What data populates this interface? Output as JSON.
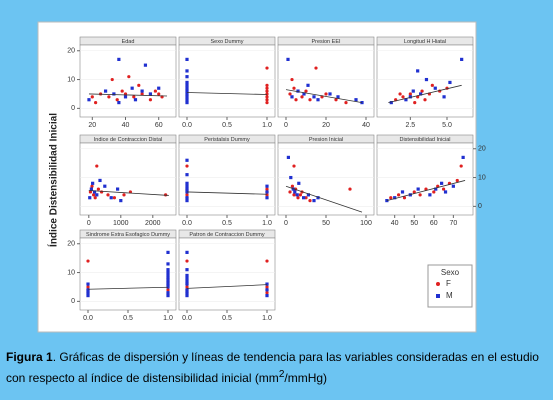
{
  "figure": {
    "y_label": "Índice Distensibilidad Inicial",
    "legend_title": "Sexo"
  },
  "caption": {
    "label": "Figura 1",
    "text": ". Gráficas de dispersión y líneas de tendencia para las variables consideradas en el estudio con respecto al índice de distensibilidad inicial (mm",
    "superscript": "2",
    "text_end": "/mmHg)"
  },
  "chart_data": [
    {
      "type": "scatter",
      "title": "Edad",
      "yaxis": "left",
      "xlim": [
        15,
        68
      ],
      "xticks": [
        20,
        40,
        60
      ],
      "ylim": [
        -3,
        22
      ],
      "yticks": [
        0,
        10,
        20
      ],
      "series": [
        {
          "name": "F",
          "color": "#e02020",
          "x": [
            20,
            25,
            30,
            32,
            35,
            38,
            40,
            42,
            45,
            48,
            50,
            55,
            58,
            60,
            62,
            22
          ],
          "values": [
            4,
            5,
            4,
            10,
            3,
            6,
            5,
            11,
            4,
            8,
            5,
            3,
            6,
            5,
            4,
            2
          ]
        },
        {
          "name": "M",
          "color": "#2030d0",
          "x": [
            18,
            28,
            33,
            36,
            40,
            44,
            46,
            50,
            52,
            55,
            60,
            36
          ],
          "values": [
            3,
            6,
            5,
            17,
            4,
            7,
            3,
            6,
            15,
            5,
            7,
            2
          ]
        }
      ],
      "trend": {
        "x": [
          18,
          65
        ],
        "values": [
          5,
          4.3
        ]
      }
    },
    {
      "type": "scatter",
      "title": "Sexo Dummy",
      "yaxis": "none",
      "xlim": [
        -0.05,
        1.05
      ],
      "xticks": [
        {
          "value": 0,
          "label": "0.0"
        },
        0.5,
        {
          "value": 1,
          "label": "1.0"
        }
      ],
      "ylim": [
        -3,
        22
      ],
      "yticks": [
        0,
        10,
        20
      ],
      "series": [
        {
          "name": "F",
          "color": "#e02020",
          "x": [
            1,
            1,
            1,
            1,
            1,
            1,
            1,
            1
          ],
          "values": [
            2,
            3,
            4,
            5,
            6,
            7,
            8,
            14
          ]
        },
        {
          "name": "M",
          "color": "#2030d0",
          "x": [
            0,
            0,
            0,
            0,
            0,
            0,
            0,
            0,
            0,
            0,
            0
          ],
          "values": [
            2,
            3,
            4,
            5,
            6,
            7,
            8,
            9,
            11,
            13,
            17
          ]
        }
      ],
      "trend": {
        "x": [
          0,
          1
        ],
        "values": [
          5.5,
          4.8
        ]
      }
    },
    {
      "type": "scatter",
      "title": "Presion EEI",
      "yaxis": "none",
      "xlim": [
        -2,
        42
      ],
      "xticks": [
        0,
        20,
        40
      ],
      "ylim": [
        -3,
        22
      ],
      "yticks": [
        0,
        10,
        20
      ],
      "series": [
        {
          "name": "F",
          "color": "#e02020",
          "x": [
            2,
            4,
            5,
            8,
            10,
            12,
            15,
            18,
            20,
            25,
            30,
            3
          ],
          "values": [
            5,
            7,
            3,
            4,
            6,
            3,
            14,
            4,
            5,
            3,
            2,
            10
          ]
        },
        {
          "name": "M",
          "color": "#2030d0",
          "x": [
            1,
            3,
            6,
            9,
            11,
            14,
            16,
            22,
            26,
            35,
            38
          ],
          "values": [
            17,
            4,
            6,
            5,
            8,
            4,
            3,
            5,
            4,
            3,
            2
          ]
        }
      ],
      "trend": {
        "x": [
          0,
          38
        ],
        "values": [
          6.5,
          2
        ]
      }
    },
    {
      "type": "scatter",
      "title": "Longitud H Hiatal",
      "yaxis": "none",
      "xlim": [
        0.5,
        6.5
      ],
      "xticks": [
        2.5,
        {
          "value": 5,
          "label": "5.0"
        }
      ],
      "ylim": [
        -3,
        22
      ],
      "yticks": [
        0,
        10,
        20
      ],
      "series": [
        {
          "name": "F",
          "color": "#e02020",
          "x": [
            1.5,
            2,
            2.5,
            3,
            3.3,
            3.8,
            4,
            4.5,
            5,
            2.8,
            3.5,
            1.8
          ],
          "values": [
            3,
            4,
            5,
            4,
            6,
            5,
            8,
            6,
            7,
            2,
            3,
            5
          ]
        },
        {
          "name": "M",
          "color": "#2030d0",
          "x": [
            1.2,
            2.2,
            2.7,
            3.2,
            3.6,
            4.2,
            4.8,
            5.2,
            6,
            3,
            2.5
          ],
          "values": [
            2,
            3,
            6,
            5,
            10,
            7,
            4,
            9,
            17,
            13,
            4
          ]
        }
      ],
      "trend": {
        "x": [
          1,
          6
        ],
        "values": [
          2,
          8
        ]
      }
    },
    {
      "type": "scatter",
      "title": "Indice de Contraccion Distal",
      "yaxis": "none",
      "xlim": [
        -150,
        2600
      ],
      "xticks": [
        0,
        1000,
        2000
      ],
      "ylim": [
        -3,
        22
      ],
      "yticks": [
        0,
        10,
        20
      ],
      "series": [
        {
          "name": "F",
          "color": "#e02020",
          "x": [
            50,
            100,
            150,
            200,
            300,
            400,
            600,
            800,
            1100,
            1300,
            2400,
            250
          ],
          "values": [
            5,
            7,
            4,
            3,
            6,
            5,
            4,
            3,
            4,
            5,
            4,
            14
          ]
        },
        {
          "name": "M",
          "color": "#2030d0",
          "x": [
            30,
            80,
            120,
            180,
            250,
            350,
            500,
            700,
            900,
            1000
          ],
          "values": [
            3,
            6,
            8,
            5,
            4,
            9,
            7,
            3,
            6,
            2
          ]
        }
      ],
      "trend": {
        "x": [
          0,
          2500
        ],
        "values": [
          5.5,
          3.8
        ]
      }
    },
    {
      "type": "scatter",
      "title": "Peristalsis Dummy",
      "yaxis": "none",
      "xlim": [
        -0.05,
        1.05
      ],
      "xticks": [
        {
          "value": 0,
          "label": "0.0"
        },
        0.5,
        {
          "value": 1,
          "label": "1.0"
        }
      ],
      "ylim": [
        -3,
        22
      ],
      "yticks": [
        0,
        10,
        20
      ],
      "series": [
        {
          "name": "F",
          "color": "#e02020",
          "x": [
            0,
            0,
            0,
            0,
            0,
            1,
            1,
            1
          ],
          "values": [
            3,
            4,
            5,
            6,
            14,
            4,
            5,
            6
          ]
        },
        {
          "name": "M",
          "color": "#2030d0",
          "x": [
            0,
            0,
            0,
            0,
            0,
            0,
            0,
            0,
            1,
            1,
            1
          ],
          "values": [
            2,
            3,
            5,
            6,
            7,
            8,
            11,
            16,
            3,
            5,
            7
          ]
        }
      ],
      "trend": {
        "x": [
          0,
          1
        ],
        "values": [
          5,
          4.2
        ]
      }
    },
    {
      "type": "scatter",
      "title": "Presion Inicial",
      "yaxis": "none",
      "xlim": [
        -5,
        105
      ],
      "xticks": [
        0,
        50,
        100
      ],
      "ylim": [
        -3,
        22
      ],
      "yticks": [
        0,
        10,
        20
      ],
      "series": [
        {
          "name": "F",
          "color": "#e02020",
          "x": [
            5,
            8,
            10,
            12,
            15,
            18,
            20,
            25,
            30,
            10,
            80
          ],
          "values": [
            5,
            7,
            4,
            6,
            3,
            4,
            5,
            3,
            2,
            14,
            6
          ]
        },
        {
          "name": "M",
          "color": "#2030d0",
          "x": [
            3,
            6,
            9,
            11,
            14,
            16,
            22,
            28,
            35,
            40
          ],
          "values": [
            17,
            10,
            6,
            5,
            4,
            8,
            3,
            4,
            2,
            3
          ]
        }
      ],
      "trend": {
        "x": [
          0,
          95
        ],
        "values": [
          7,
          -2
        ]
      }
    },
    {
      "type": "scatter",
      "title": "Distensibilidad Inicial",
      "yaxis": "right",
      "xlim": [
        33,
        78
      ],
      "xticks": [
        40,
        50,
        60,
        70
      ],
      "ylim": [
        -3,
        22
      ],
      "yticks": [
        0,
        10,
        20
      ],
      "series": [
        {
          "name": "F",
          "color": "#e02020",
          "x": [
            38,
            42,
            45,
            50,
            53,
            56,
            60,
            62,
            65,
            68,
            72,
            74
          ],
          "values": [
            3,
            4,
            3,
            5,
            4,
            6,
            5,
            7,
            6,
            8,
            9,
            14
          ]
        },
        {
          "name": "M",
          "color": "#2030d0",
          "x": [
            36,
            40,
            44,
            48,
            52,
            58,
            61,
            64,
            66,
            70,
            75
          ],
          "values": [
            2,
            3,
            5,
            4,
            6,
            4,
            6,
            8,
            5,
            7,
            17
          ]
        }
      ],
      "trend": {
        "x": [
          36,
          76
        ],
        "values": [
          2,
          9
        ]
      }
    },
    {
      "type": "scatter",
      "title": "Sindrome Extra Esofagico Dummy",
      "yaxis": "left",
      "xlim": [
        -0.05,
        1.05
      ],
      "xticks": [
        {
          "value": 0,
          "label": "0.0"
        },
        0.5,
        {
          "value": 1,
          "label": "1.0"
        }
      ],
      "ylim": [
        -3,
        22
      ],
      "yticks": [
        0,
        10,
        20
      ],
      "series": [
        {
          "name": "F",
          "color": "#e02020",
          "x": [
            0,
            0,
            0,
            0,
            1,
            1,
            1,
            1
          ],
          "values": [
            3,
            4,
            5,
            14,
            4,
            6,
            7,
            8
          ]
        },
        {
          "name": "M",
          "color": "#2030d0",
          "x": [
            0,
            0,
            0,
            0,
            1,
            1,
            1,
            1,
            1,
            1,
            1,
            1,
            1,
            1,
            1
          ],
          "values": [
            2,
            3,
            4,
            6,
            2,
            3,
            5,
            6,
            7,
            8,
            9,
            10,
            11,
            13,
            17
          ]
        }
      ],
      "trend": {
        "x": [
          0,
          1
        ],
        "values": [
          4.2,
          4.9
        ]
      }
    },
    {
      "type": "scatter",
      "title": "Patron de Contraccion Dummy",
      "yaxis": "none",
      "xlim": [
        -0.05,
        1.05
      ],
      "xticks": [
        {
          "value": 0,
          "label": "0.0"
        },
        0.5,
        {
          "value": 1,
          "label": "1.0"
        }
      ],
      "ylim": [
        -3,
        22
      ],
      "yticks": [
        0,
        10,
        20
      ],
      "series": [
        {
          "name": "F",
          "color": "#e02020",
          "x": [
            0,
            0,
            0,
            0,
            0,
            1,
            1,
            1
          ],
          "values": [
            3,
            4,
            5,
            6,
            14,
            3,
            5,
            14
          ]
        },
        {
          "name": "M",
          "color": "#2030d0",
          "x": [
            0,
            0,
            0,
            0,
            0,
            0,
            0,
            0,
            0,
            1,
            1,
            1
          ],
          "values": [
            2,
            3,
            4,
            6,
            7,
            8,
            9,
            11,
            17,
            2,
            4,
            6
          ]
        }
      ],
      "trend": {
        "x": [
          0,
          1
        ],
        "values": [
          4.5,
          5.8
        ]
      }
    }
  ]
}
